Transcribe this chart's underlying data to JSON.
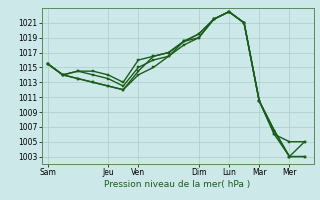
{
  "xlabel": "Pression niveau de la mer( hPa )",
  "background_color": "#cce8e8",
  "grid_color": "#aacccc",
  "line_color": "#1a5c1a",
  "ylim": [
    1002,
    1023
  ],
  "yticks": [
    1003,
    1005,
    1007,
    1009,
    1011,
    1013,
    1015,
    1017,
    1019,
    1021
  ],
  "x_labels": [
    "Sam",
    "Jeu",
    "Ven",
    "Dim",
    "Lun",
    "Mar",
    "Mer"
  ],
  "x_positions": [
    0,
    2,
    3,
    5,
    6,
    7,
    8
  ],
  "xlim": [
    -0.2,
    8.8
  ],
  "lines": [
    {
      "x": [
        0,
        0.5,
        1.0,
        1.5,
        2.0,
        2.5,
        3.0,
        3.5,
        4.0,
        4.5,
        5.0,
        5.5,
        6.0,
        6.5,
        7.0,
        7.5,
        8.0,
        8.5
      ],
      "y": [
        1015.5,
        1014.0,
        1014.5,
        1014.5,
        1014.0,
        1013.0,
        1016.0,
        1016.5,
        1017.0,
        1018.5,
        1019.0,
        1021.5,
        1022.5,
        1021.0,
        1010.5,
        1006.0,
        1005.0,
        1005.0
      ]
    },
    {
      "x": [
        0,
        0.5,
        1.0,
        1.5,
        2.0,
        2.5,
        3.0,
        3.5,
        4.0,
        4.5,
        5.0,
        5.5,
        6.0,
        6.5,
        7.0,
        7.5,
        8.0,
        8.5
      ],
      "y": [
        1015.5,
        1014.0,
        1014.5,
        1014.0,
        1013.5,
        1012.5,
        1015.0,
        1016.0,
        1016.5,
        1018.0,
        1019.0,
        1021.5,
        1022.5,
        1021.0,
        1010.5,
        1006.5,
        1003.0,
        1003.0
      ]
    },
    {
      "x": [
        0,
        0.5,
        1.0,
        1.5,
        2.0,
        2.5,
        3.0,
        3.5,
        4.0,
        4.5,
        5.0,
        5.5,
        6.0,
        6.5,
        7.0,
        7.5,
        8.0,
        8.5
      ],
      "y": [
        1015.5,
        1014.0,
        1013.5,
        1013.0,
        1012.5,
        1012.0,
        1014.0,
        1015.0,
        1016.5,
        1018.5,
        1019.5,
        1021.5,
        1022.5,
        1021.0,
        1010.5,
        1006.5,
        1003.0,
        1003.0
      ]
    },
    {
      "x": [
        0,
        0.5,
        1.0,
        1.5,
        2.0,
        2.5,
        3.0,
        3.5,
        4.0,
        4.5,
        5.0,
        5.5,
        6.0,
        6.5,
        7.0,
        7.5,
        8.0,
        8.5
      ],
      "y": [
        1015.5,
        1014.0,
        1013.5,
        1013.0,
        1012.5,
        1012.0,
        1014.5,
        1016.5,
        1017.0,
        1018.5,
        1019.5,
        1021.5,
        1022.5,
        1021.0,
        1010.5,
        1006.0,
        1003.0,
        1005.0
      ]
    }
  ],
  "marker_size": 2.0,
  "linewidth": 1.0,
  "tick_fontsize": 5.5,
  "xlabel_fontsize": 6.5
}
